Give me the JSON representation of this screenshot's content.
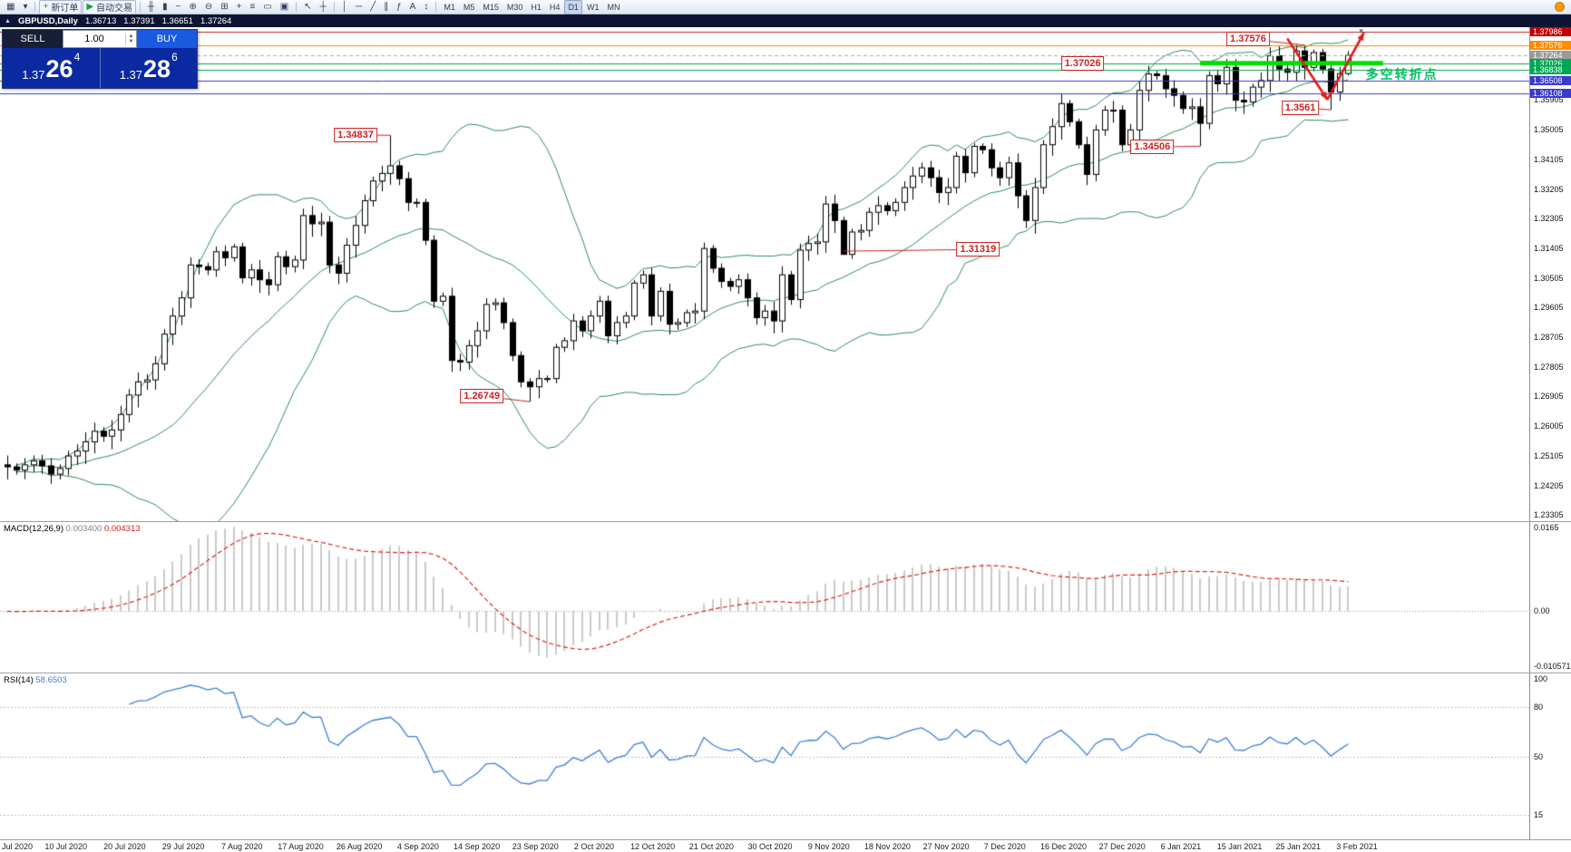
{
  "toolbar": {
    "window_buttons": [
      {
        "name": "charts-window-icon",
        "glyph": "▦"
      },
      {
        "name": "window-list-icon",
        "glyph": "▾"
      }
    ],
    "new_order_label": "新订单",
    "new_order_icon": "+",
    "autotrade_label": "自动交易",
    "autotrade_icon": "▶",
    "icon_buttons": [
      {
        "name": "bar-chart-icon",
        "glyph": "╫"
      },
      {
        "name": "candlestick-chart-icon",
        "glyph": "▮"
      },
      {
        "name": "line-chart-icon",
        "glyph": "~"
      },
      {
        "name": "zoom-in-icon",
        "glyph": "⊕"
      },
      {
        "name": "zoom-out-icon",
        "glyph": "⊖"
      },
      {
        "name": "tile-windows-icon",
        "glyph": "⊞"
      },
      {
        "name": "indicators-icon",
        "glyph": "+"
      },
      {
        "name": "navigator-icon",
        "glyph": "≡"
      },
      {
        "name": "terminal-icon",
        "glyph": "▭"
      },
      {
        "name": "templates-icon",
        "glyph": "▣"
      }
    ],
    "cursor_buttons": [
      {
        "name": "cursor-icon",
        "glyph": "↖"
      },
      {
        "name": "crosshair-icon",
        "glyph": "┼"
      }
    ],
    "draw_buttons": [
      {
        "name": "vertical-line-icon",
        "glyph": "│"
      },
      {
        "name": "horizontal-line-icon",
        "glyph": "─"
      },
      {
        "name": "trendline-icon",
        "glyph": "╱"
      },
      {
        "name": "channel-icon",
        "glyph": "∥"
      },
      {
        "name": "fibonacci-icon",
        "glyph": "ƒ"
      },
      {
        "name": "text-icon",
        "glyph": "A"
      },
      {
        "name": "arrows-icon",
        "glyph": "↕"
      }
    ],
    "timeframes": [
      "M1",
      "M5",
      "M15",
      "M30",
      "H1",
      "H4",
      "D1",
      "W1",
      "MN"
    ],
    "active_timeframe": "D1"
  },
  "chart_header": {
    "collapse_icon": "▲",
    "symbol_period": "GBPUSD,Daily",
    "open": "1.36713",
    "high": "1.37391",
    "low": "1.36651",
    "close": "1.37264"
  },
  "one_click": {
    "sell_label": "SELL",
    "buy_label": "BUY",
    "volume": "1.00",
    "bid": {
      "prefix": "1.37",
      "big": "26",
      "sup": "4"
    },
    "ask": {
      "prefix": "1.37",
      "big": "28",
      "sup": "6"
    }
  },
  "chart_data": {
    "type": "candlestick",
    "symbol": "GBPUSD",
    "timeframe": "Daily",
    "price_range": [
      1.2312,
      1.3812
    ],
    "last_bar": {
      "open": 1.36713,
      "high": 1.37391,
      "low": 1.36651,
      "close": 1.37264
    },
    "closes": [
      1.2477,
      1.2467,
      1.2483,
      1.2495,
      1.248,
      1.2455,
      1.2472,
      1.251,
      1.2525,
      1.2553,
      1.2585,
      1.257,
      1.2589,
      1.2636,
      1.2695,
      1.2735,
      1.2741,
      1.279,
      1.288,
      1.2935,
      1.299,
      1.309,
      1.3085,
      1.3075,
      1.313,
      1.3112,
      1.3145,
      1.3051,
      1.3075,
      1.3045,
      1.303,
      1.3115,
      1.3085,
      1.3105,
      1.324,
      1.3215,
      1.322,
      1.309,
      1.3065,
      1.315,
      1.321,
      1.3285,
      1.3345,
      1.3368,
      1.3391,
      1.3352,
      1.328,
      1.328,
      1.3165,
      1.298,
      1.2995,
      1.28,
      1.2795,
      1.2845,
      1.289,
      1.297,
      1.2975,
      1.2915,
      1.2815,
      1.2735,
      1.272,
      1.2745,
      1.2745,
      1.284,
      1.286,
      1.292,
      1.289,
      1.2935,
      1.298,
      1.2875,
      1.2915,
      1.2935,
      1.3035,
      1.306,
      1.2935,
      1.301,
      1.291,
      1.2915,
      1.2945,
      1.295,
      1.314,
      1.308,
      1.304,
      1.3025,
      1.3045,
      1.299,
      1.293,
      1.295,
      1.292,
      1.306,
      1.2985,
      1.3135,
      1.3155,
      1.316,
      1.3275,
      1.3225,
      1.3122,
      1.319,
      1.3195,
      1.325,
      1.327,
      1.3255,
      1.328,
      1.3325,
      1.336,
      1.3385,
      1.3355,
      1.331,
      1.3325,
      1.342,
      1.337,
      1.345,
      1.344,
      1.3385,
      1.3355,
      1.34,
      1.33,
      1.3225,
      1.3325,
      1.3455,
      1.351,
      1.358,
      1.3525,
      1.3455,
      1.3365,
      1.35,
      1.356,
      1.356,
      1.3455,
      1.35,
      1.362,
      1.367,
      1.3665,
      1.3625,
      1.3605,
      1.3565,
      1.357,
      1.352,
      1.3665,
      1.364,
      1.369,
      1.359,
      1.3585,
      1.363,
      1.365,
      1.3725,
      1.3685,
      1.3675,
      1.374,
      1.369,
      1.3735,
      1.3685,
      1.3615,
      1.3671,
      1.37264
    ],
    "bar_overrides": {
      "44": {
        "h": 1.34837
      },
      "60": {
        "l": 1.26749
      },
      "96": {
        "l": 1.31319
      },
      "137": {
        "l": 1.34506
      },
      "149": {
        "h": 1.37576
      },
      "152": {
        "l": 1.35611
      },
      "154": {
        "o": 1.36713,
        "h": 1.37391,
        "l": 1.36651
      }
    },
    "indicators": {
      "bollinger_period": 20,
      "bollinger_deviation": 2,
      "bollinger_color": "#2e8b57"
    },
    "levels": [
      {
        "price": 1.37986,
        "color": "#b22222",
        "style": "solid"
      },
      {
        "price": 1.37576,
        "color": "#ff8c00",
        "style": "solid"
      },
      {
        "price": 1.37264,
        "color": "#ababab",
        "style": "dash"
      },
      {
        "price": 1.37026,
        "color": "#00a651",
        "style": "solid"
      },
      {
        "price": 1.36838,
        "color": "#00a651",
        "style": "solid"
      },
      {
        "price": 1.36508,
        "color": "#3a3ace",
        "style": "solid"
      },
      {
        "price": 1.36108,
        "color": "#3a3ace",
        "style": "solid"
      }
    ],
    "highlight_segment": {
      "from_bar": 137,
      "to_bar": 158,
      "price": 1.37026,
      "color": "#00dd00",
      "width": 5
    },
    "annotations": [
      {
        "label": "1.34837",
        "box_bar": 40,
        "box_price": 1.3485,
        "point_bar": 44,
        "point_price": 1.34837
      },
      {
        "label": "1.26749",
        "box_bar": 54.5,
        "box_price": 1.2692,
        "point_bar": 60,
        "point_price": 1.26749
      },
      {
        "label": "1.31319",
        "box_bar": 111.5,
        "box_price": 1.3137,
        "point_bar": 96,
        "point_price": 1.31319
      },
      {
        "label": "1.34506",
        "box_bar": 131.5,
        "box_price": 1.3448,
        "point_bar": 137,
        "point_price": 1.34506
      },
      {
        "label": "1.3561",
        "box_bar": 148.5,
        "box_price": 1.3568,
        "point_bar": 152,
        "point_price": 1.35611
      },
      {
        "label": "1.37576",
        "box_bar": 142.5,
        "box_price": 1.3776,
        "point_bar": 149,
        "point_price": 1.37576
      },
      {
        "label": "1.37026",
        "box_bar": 123.5,
        "box_price": 1.37026
      }
    ],
    "trend_arrows": [
      {
        "from_bar": 147,
        "from_price": 1.3778,
        "to_bar": 151.6,
        "to_price": 1.3592,
        "color": "#e01818"
      },
      {
        "from_bar": 151.6,
        "from_price": 1.3592,
        "to_bar": 155.8,
        "to_price": 1.3795,
        "color": "#e01818"
      }
    ],
    "note": {
      "text": "多空转折点",
      "color": "#00c060",
      "bar": 156,
      "price": 1.3668
    },
    "shift_marker_bar": 155.5
  },
  "macd": {
    "label": "MACD(12,26,9)",
    "value_main": "0.003400",
    "value_signal": "0.004313",
    "scale_labels": [
      "0.0165",
      "0.00",
      "-0.010571"
    ],
    "histogram_color": "#c9c9c9",
    "signal_color": "#e02020"
  },
  "rsi": {
    "label": "RSI(14)",
    "value": "58.6503",
    "line_color": "#3f7fd6",
    "levels": [
      80,
      50,
      15
    ],
    "scale_labels": [
      "100",
      "80",
      "50",
      "15"
    ]
  },
  "price_scale": {
    "badges": [
      {
        "label": "1.37986",
        "bg": "#c00000"
      },
      {
        "label": "1.37576",
        "bg": "#ff8c00"
      },
      {
        "label": "1.37264",
        "bg": "#9a9a9a"
      },
      {
        "label": "1.37026",
        "bg": "#00a651"
      },
      {
        "label": "1.36838",
        "bg": "#00a651"
      },
      {
        "label": "1.36508",
        "bg": "#3a3ace"
      },
      {
        "label": "1.36108",
        "bg": "#3a3ace"
      }
    ],
    "ticks": [
      "1.35905",
      "1.35005",
      "1.34105",
      "1.33205",
      "1.32305",
      "1.31405",
      "1.30505",
      "1.29605",
      "1.28705",
      "1.27805",
      "1.26905",
      "1.26005",
      "1.25105",
      "1.24205",
      "1.23305"
    ]
  },
  "date_axis": {
    "labels": [
      "Jul 2020",
      "10 Jul 2020",
      "20 Jul 2020",
      "29 Jul 2020",
      "7 Aug 2020",
      "17 Aug 2020",
      "26 Aug 2020",
      "4 Sep 2020",
      "14 Sep 2020",
      "23 Sep 2020",
      "2 Oct 2020",
      "12 Oct 2020",
      "21 Oct 2020",
      "30 Oct 2020",
      "9 Nov 2020",
      "18 Nov 2020",
      "27 Nov 2020",
      "7 Dec 2020",
      "16 Dec 2020",
      "27 Dec 2020",
      "6 Jan 2021",
      "15 Jan 2021",
      "25 Jan 2021",
      "3 Feb 2021"
    ]
  }
}
